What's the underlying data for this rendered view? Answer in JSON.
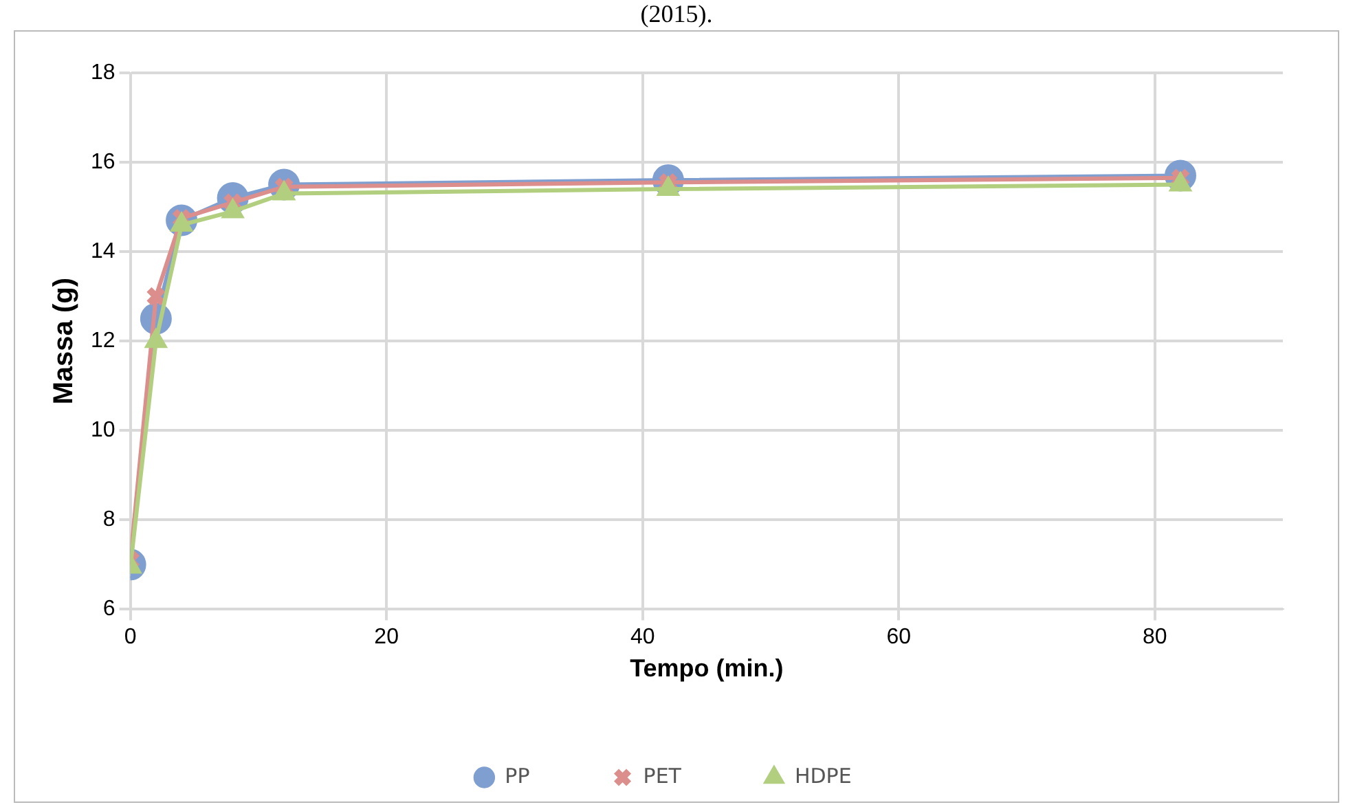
{
  "chart_data": {
    "type": "line",
    "xlabel": "Tempo (min.)",
    "ylabel": "Massa (g)",
    "annotations": [
      "(2015)."
    ],
    "x": [
      0,
      2,
      4,
      8,
      12,
      42,
      82
    ],
    "series": [
      {
        "name": "PP",
        "color": "#7f9fd0",
        "marker": "circle",
        "values": [
          7.0,
          12.5,
          14.7,
          15.2,
          15.5,
          15.6,
          15.7
        ]
      },
      {
        "name": "PET",
        "color": "#dc8e8c",
        "marker": "cross",
        "values": [
          7.1,
          13.0,
          14.75,
          15.1,
          15.45,
          15.55,
          15.65
        ]
      },
      {
        "name": "HDPE",
        "color": "#b2cf80",
        "marker": "triangle",
        "values": [
          6.95,
          12.0,
          14.6,
          14.9,
          15.3,
          15.4,
          15.5
        ]
      }
    ],
    "xlim": [
      0,
      90
    ],
    "xticks": [
      0,
      20,
      40,
      60,
      80
    ],
    "ylim": [
      6,
      18
    ],
    "yticks": [
      6,
      8,
      10,
      12,
      14,
      16,
      18
    ],
    "grid": true,
    "legend": "bottom",
    "line_style": "solid"
  }
}
